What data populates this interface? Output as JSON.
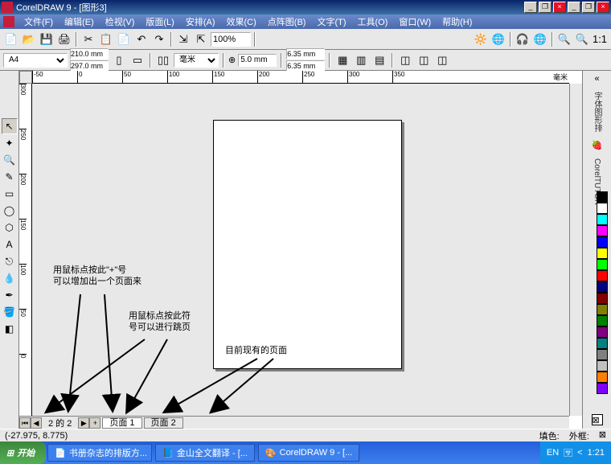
{
  "window": {
    "title": "CorelDRAW 9 - [图形3]"
  },
  "menu": {
    "items": [
      "文件(F)",
      "编辑(E)",
      "检视(V)",
      "版面(L)",
      "安排(A)",
      "效果(C)",
      "点阵图(B)",
      "文字(T)",
      "工具(O)",
      "窗口(W)",
      "帮助(H)"
    ]
  },
  "toolbar1": {
    "zoom_value": "100%",
    "icons": [
      "new",
      "open",
      "save",
      "print",
      "cut",
      "copy",
      "paste",
      "undo",
      "redo",
      "import",
      "export"
    ]
  },
  "propbar": {
    "paper": "A4",
    "width": "210.0 mm",
    "height": "297.0 mm",
    "unit": "毫米",
    "nudge": "5.0 mm",
    "dup_x": "6.35 mm",
    "dup_y": "6.35 mm"
  },
  "ruler_unit": "毫米",
  "ruler_h": [
    "-50",
    "0",
    "50",
    "100",
    "150",
    "200",
    "250",
    "300",
    "350"
  ],
  "ruler_v": [
    "300",
    "250",
    "200",
    "150",
    "100",
    "50",
    "0"
  ],
  "annotations": {
    "a1_l1": "用鼠标点按此\"+\"号",
    "a1_l2": "可以增加出一个页面来",
    "a2_l1": "用鼠标点按此符",
    "a2_l2": "号可以进行跳页",
    "a3": "目前现有的页面"
  },
  "pagenav": {
    "counter": "2 的 2",
    "tab1": "页面  1",
    "tab2": "页面  2"
  },
  "status": {
    "coords": "(-27.975, 8.775)",
    "fill_lbl": "填色:",
    "outline_lbl": "外框:"
  },
  "colors": [
    "#000000",
    "#ffffff",
    "#00ffff",
    "#ff00ff",
    "#0000ff",
    "#ffff00",
    "#00ff00",
    "#ff0000",
    "#000080",
    "#800000",
    "#808000",
    "#008000",
    "#800080",
    "#008080",
    "#808080",
    "#c0c0c0",
    "#ff8000",
    "#8000ff"
  ],
  "taskbar": {
    "start": "开始",
    "items": [
      "书册杂志的排版方...",
      "金山全文翻译 - [...",
      "CorelDRAW 9 - [..."
    ],
    "time": "1:21"
  },
  "rpanel": {
    "label1": "字体图形排",
    "label2": "CorelTUTOR"
  }
}
